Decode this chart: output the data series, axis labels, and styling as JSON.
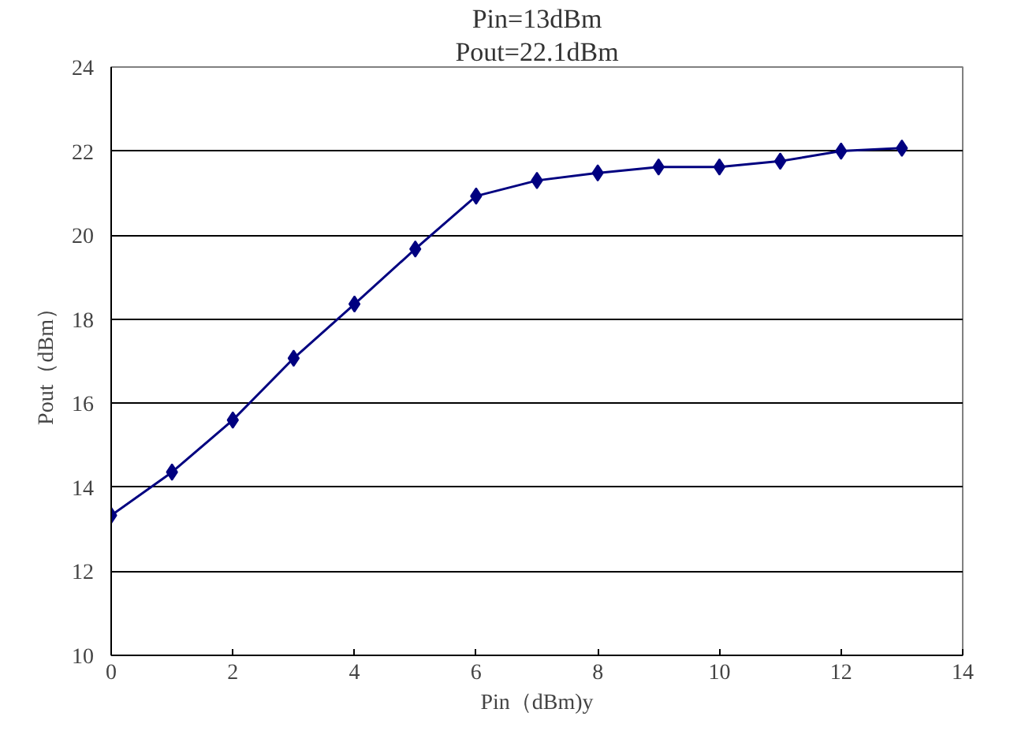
{
  "chart_data": {
    "type": "line",
    "title": "Pin=13dBm",
    "subtitle": "Pout=22.1dBm",
    "xlabel": "Pin（dBm)y",
    "ylabel": "Pout（dBm）",
    "x": [
      0,
      1,
      2,
      3,
      4,
      5,
      6,
      7,
      8,
      9,
      10,
      11,
      12,
      13
    ],
    "series": [
      {
        "color": "#000080",
        "values": [
          13.33,
          14.36,
          15.6,
          17.07,
          18.36,
          19.67,
          20.93,
          21.3,
          21.48,
          21.62,
          21.62,
          21.76,
          22.0,
          22.07
        ]
      }
    ],
    "xlim": [
      0,
      14
    ],
    "xticks": [
      0,
      2,
      4,
      6,
      8,
      10,
      12,
      14
    ],
    "ylim": [
      10,
      24
    ],
    "yticks": [
      10,
      12,
      14,
      16,
      18,
      20,
      22,
      24
    ],
    "grid": "y",
    "marker": "diamond",
    "line_style": "solid"
  }
}
